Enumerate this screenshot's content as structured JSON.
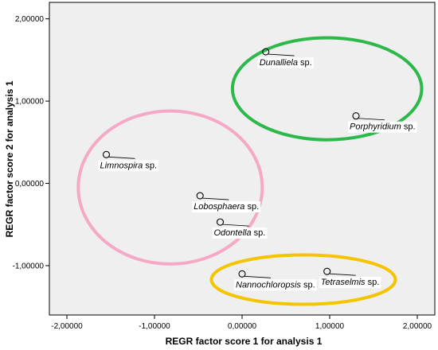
{
  "chart_data": {
    "type": "scatter",
    "xlabel": "REGR factor score   1 for analysis 1",
    "ylabel": "REGR factor score   2 for analysis 1",
    "xlim": [
      -2.2,
      2.2
    ],
    "ylim": [
      -1.6,
      2.2
    ],
    "x_ticks": [
      -2.0,
      -1.0,
      0.0,
      1.0,
      2.0
    ],
    "y_ticks": [
      -1.0,
      0.0,
      1.0,
      2.0
    ],
    "x_tick_labels": [
      "-2,00000",
      "-1,00000",
      "0,00000",
      "1,00000",
      "2,00000"
    ],
    "y_tick_labels": [
      "-1,00000",
      "0,00000",
      "1,00000",
      "2,00000"
    ],
    "grid": false,
    "plot_background": "#efefef",
    "marker_color": "#000000",
    "points": [
      {
        "genus": "Dunalliela",
        "suffix": " sp.",
        "x": 0.27,
        "y": 1.6
      },
      {
        "genus": "Porphyridium",
        "suffix": " sp.",
        "x": 1.3,
        "y": 0.82
      },
      {
        "genus": "Limnospira",
        "suffix": " sp.",
        "x": -1.55,
        "y": 0.35
      },
      {
        "genus": "Lobosphaera",
        "suffix": " sp.",
        "x": -0.48,
        "y": -0.15
      },
      {
        "genus": "Odontella",
        "suffix": " sp.",
        "x": -0.25,
        "y": -0.47
      },
      {
        "genus": "Nannochloropsis",
        "suffix": " sp.",
        "x": 0.0,
        "y": -1.1
      },
      {
        "genus": "Tetraselmis",
        "suffix": " sp.",
        "x": 0.97,
        "y": -1.07
      }
    ],
    "groups": [
      {
        "color": "#2db84a",
        "cx": 0.97,
        "cy": 1.15,
        "rx": 1.08,
        "ry": 0.62
      },
      {
        "color": "#f5a9c6",
        "cx": -0.82,
        "cy": -0.05,
        "rx": 1.05,
        "ry": 0.93
      },
      {
        "color": "#f5c400",
        "cx": 0.7,
        "cy": -1.17,
        "rx": 1.05,
        "ry": 0.3
      }
    ]
  }
}
